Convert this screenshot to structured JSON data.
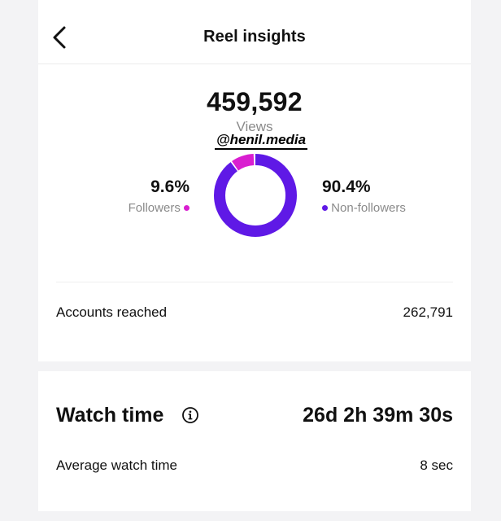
{
  "header": {
    "title": "Reel insights"
  },
  "views": {
    "count": "459,592",
    "label": "Views"
  },
  "watermark": "@henil.media",
  "audience": {
    "followers": {
      "percent": "9.6%",
      "label": "Followers",
      "color": "#d91ed0",
      "share": 0.096
    },
    "non_followers": {
      "percent": "90.4%",
      "label": "Non-followers",
      "color": "#5f19e6",
      "share": 0.904
    }
  },
  "accounts_reached": {
    "label": "Accounts reached",
    "value": "262,791"
  },
  "watch_time": {
    "label": "Watch time",
    "value": "26d 2h 39m 30s",
    "icon": "info-icon"
  },
  "average_watch_time": {
    "label": "Average watch time",
    "value": "8 sec"
  }
}
